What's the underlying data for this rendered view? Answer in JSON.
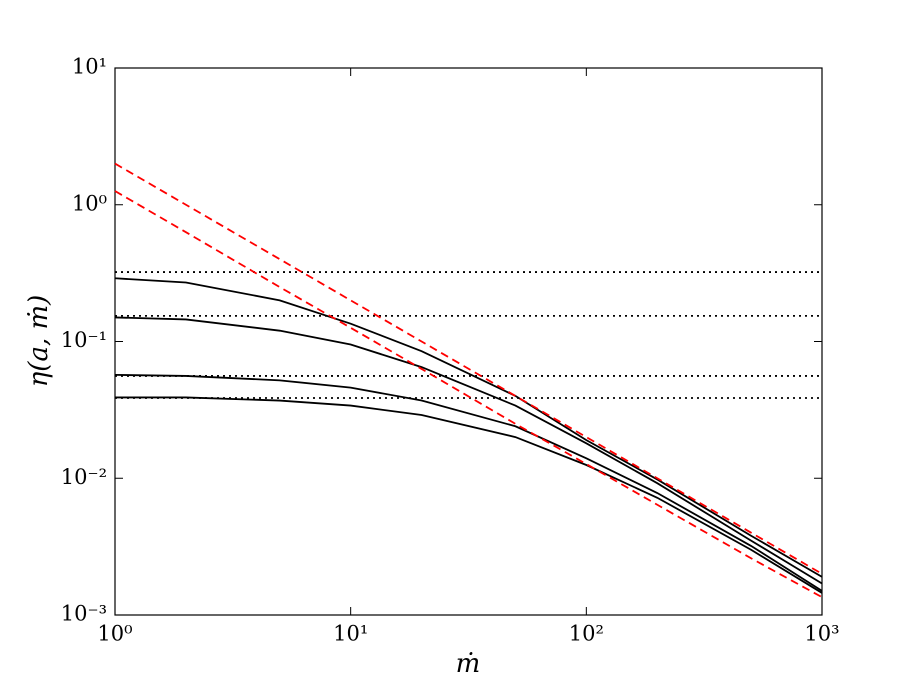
{
  "chart_data": {
    "type": "line",
    "x_label": "ṁ",
    "y_label": "η(a, ṁ)",
    "x": [
      1,
      2,
      5,
      10,
      20,
      50,
      100,
      200,
      500,
      1000
    ],
    "series": [
      {
        "color": "#000000",
        "linestyle": "solid",
        "values": [
          0.29,
          0.27,
          0.2,
          0.135,
          0.085,
          0.04,
          0.019,
          0.0098,
          0.0038,
          0.0019
        ]
      },
      {
        "color": "#000000",
        "linestyle": "solid",
        "values": [
          0.15,
          0.145,
          0.12,
          0.095,
          0.065,
          0.034,
          0.018,
          0.0092,
          0.0035,
          0.0017
        ]
      },
      {
        "color": "#000000",
        "linestyle": "solid",
        "values": [
          0.057,
          0.056,
          0.052,
          0.046,
          0.037,
          0.024,
          0.014,
          0.0078,
          0.0032,
          0.0015
        ]
      },
      {
        "color": "#000000",
        "linestyle": "solid",
        "values": [
          0.039,
          0.039,
          0.037,
          0.034,
          0.029,
          0.02,
          0.0125,
          0.0072,
          0.003,
          0.00145
        ]
      },
      {
        "color": "#000000",
        "linestyle": "dotted",
        "values": [
          0.322,
          0.322,
          0.322,
          0.322,
          0.322,
          0.322,
          0.322,
          0.322,
          0.322,
          0.322
        ]
      },
      {
        "color": "#000000",
        "linestyle": "dotted",
        "values": [
          0.154,
          0.154,
          0.154,
          0.154,
          0.154,
          0.154,
          0.154,
          0.154,
          0.154,
          0.154
        ]
      },
      {
        "color": "#000000",
        "linestyle": "dotted",
        "values": [
          0.056,
          0.056,
          0.056,
          0.056,
          0.056,
          0.056,
          0.056,
          0.056,
          0.056,
          0.056
        ]
      },
      {
        "color": "#000000",
        "linestyle": "dotted",
        "values": [
          0.0386,
          0.0386,
          0.0386,
          0.0386,
          0.0386,
          0.0386,
          0.0386,
          0.0386,
          0.0386,
          0.0386
        ]
      },
      {
        "color": "#ff0000",
        "linestyle": "dashed",
        "values": [
          2,
          1,
          0.4,
          0.2,
          0.1,
          0.04,
          0.02,
          0.01,
          0.004,
          0.002
        ]
      },
      {
        "color": "#ff0000",
        "linestyle": "dashed",
        "values": [
          1.26,
          0.63,
          0.25,
          0.126,
          0.063,
          0.025,
          0.0127,
          0.0064,
          0.0026,
          0.00135
        ]
      }
    ],
    "xscale": "log",
    "yscale": "log",
    "xlim": [
      1,
      1000
    ],
    "ylim": [
      0.001,
      10
    ],
    "xticks": [
      {
        "value": 1,
        "label": "10⁰"
      },
      {
        "value": 10,
        "label": "10¹"
      },
      {
        "value": 100,
        "label": "10²"
      },
      {
        "value": 1000,
        "label": "10³"
      }
    ],
    "yticks": [
      {
        "value": 0.001,
        "label": "10⁻³"
      },
      {
        "value": 0.01,
        "label": "10⁻²"
      },
      {
        "value": 0.1,
        "label": "10⁻¹"
      },
      {
        "value": 1,
        "label": "10⁰"
      },
      {
        "value": 10,
        "label": "10¹"
      }
    ]
  }
}
